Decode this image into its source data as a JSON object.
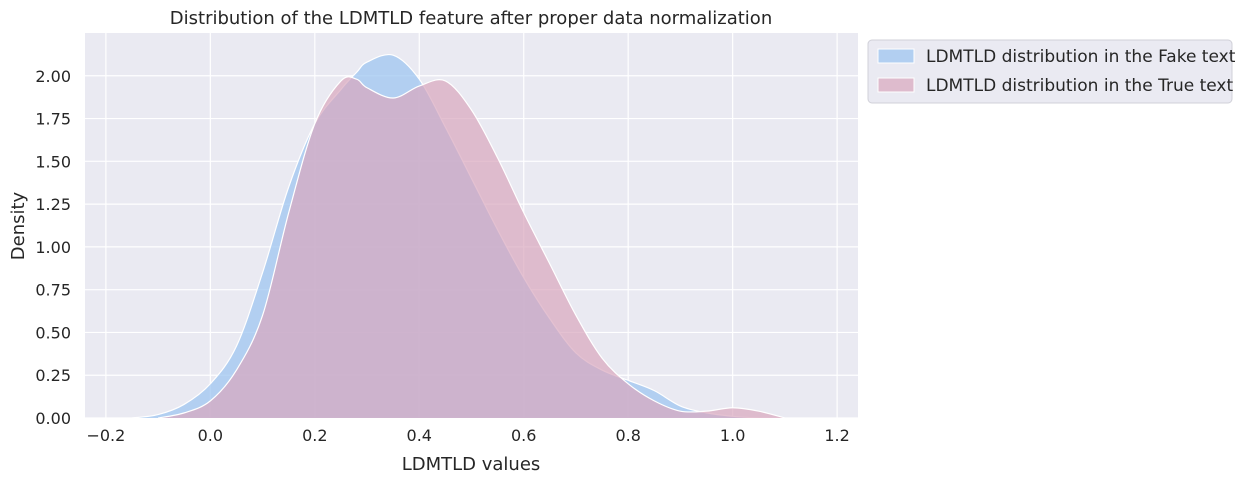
{
  "chart_data": {
    "type": "area",
    "title": "Distribution of the LDMTLD feature after proper data normalization",
    "xlabel": "LDMTLD values",
    "ylabel": "Density",
    "xlim": [
      -0.24,
      1.24
    ],
    "ylim": [
      0,
      2.25
    ],
    "x_ticks": [
      -0.2,
      0.0,
      0.2,
      0.4,
      0.6,
      0.8,
      1.0,
      1.2
    ],
    "x_tick_labels": [
      "−0.2",
      "0.0",
      "0.2",
      "0.4",
      "0.6",
      "0.8",
      "1.0",
      "1.2"
    ],
    "y_ticks": [
      0,
      0.25,
      0.5,
      0.75,
      1.0,
      1.25,
      1.5,
      1.75,
      2.0
    ],
    "y_tick_labels": [
      "0.00",
      "0.25",
      "0.50",
      "0.75",
      "1.00",
      "1.25",
      "1.50",
      "1.75",
      "2.00"
    ],
    "grid": true,
    "legend_position": "outside-upper-right",
    "series": [
      {
        "name": "LDMTLD distribution in the Fake text",
        "color": "#9fc6f0",
        "opacity": 0.75,
        "x": [
          -0.15,
          -0.1,
          -0.05,
          0.0,
          0.05,
          0.1,
          0.15,
          0.2,
          0.25,
          0.28,
          0.3,
          0.35,
          0.4,
          0.45,
          0.5,
          0.55,
          0.6,
          0.65,
          0.7,
          0.75,
          0.8,
          0.85,
          0.9,
          0.95,
          1.0,
          1.05
        ],
        "y": [
          0.0,
          0.02,
          0.08,
          0.2,
          0.42,
          0.85,
          1.35,
          1.72,
          1.92,
          2.02,
          2.08,
          2.12,
          1.98,
          1.7,
          1.4,
          1.1,
          0.82,
          0.58,
          0.38,
          0.28,
          0.22,
          0.16,
          0.07,
          0.03,
          0.01,
          0.0
        ]
      },
      {
        "name": "LDMTLD distribution in the True text",
        "color": "#d9a7bd",
        "opacity": 0.7,
        "x": [
          -0.1,
          -0.05,
          0.0,
          0.05,
          0.1,
          0.15,
          0.2,
          0.25,
          0.28,
          0.3,
          0.35,
          0.4,
          0.45,
          0.5,
          0.55,
          0.6,
          0.65,
          0.7,
          0.75,
          0.8,
          0.85,
          0.9,
          0.95,
          1.0,
          1.05,
          1.1
        ],
        "y": [
          0.0,
          0.03,
          0.1,
          0.28,
          0.6,
          1.2,
          1.72,
          1.97,
          1.98,
          1.93,
          1.87,
          1.94,
          1.97,
          1.8,
          1.52,
          1.2,
          0.9,
          0.6,
          0.35,
          0.2,
          0.1,
          0.04,
          0.04,
          0.06,
          0.04,
          0.0
        ]
      }
    ]
  }
}
